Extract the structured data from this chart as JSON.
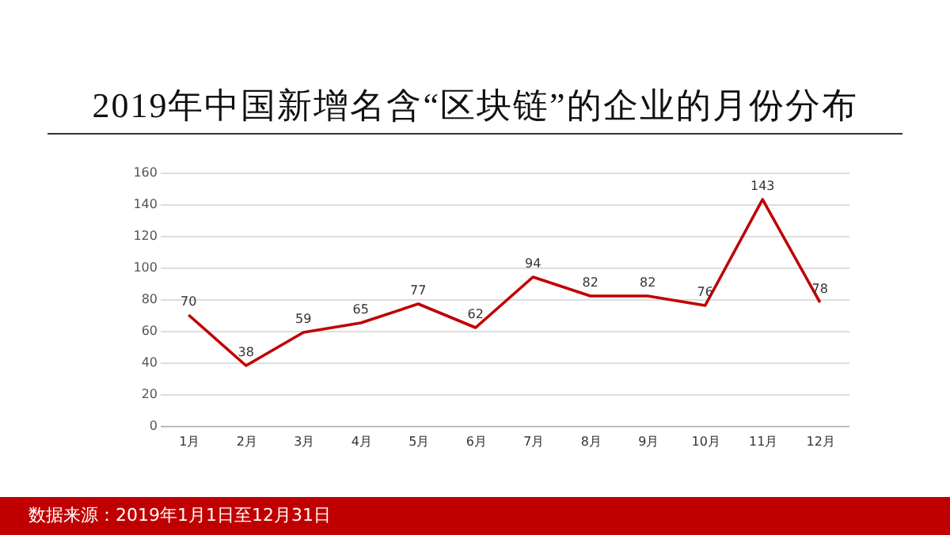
{
  "chart_data": {
    "type": "line",
    "title": "2019年中国新增名含“区块链”的企业的月份分布",
    "categories": [
      "1月",
      "2月",
      "3月",
      "4月",
      "5月",
      "6月",
      "7月",
      "8月",
      "9月",
      "10月",
      "11月",
      "12月"
    ],
    "series": [
      {
        "color": "#c00000",
        "values": [
          70,
          38,
          59,
          65,
          77,
          62,
          94,
          82,
          82,
          76,
          143,
          78
        ]
      }
    ],
    "ylim": [
      0,
      160
    ],
    "yticks": [
      0,
      20,
      40,
      60,
      80,
      100,
      120,
      140,
      160
    ],
    "grid": "y",
    "data_labels": true,
    "marker": "none",
    "line_style": "solid",
    "annotations": [
      "数据来源：2019年1月1日至12月31日"
    ]
  }
}
